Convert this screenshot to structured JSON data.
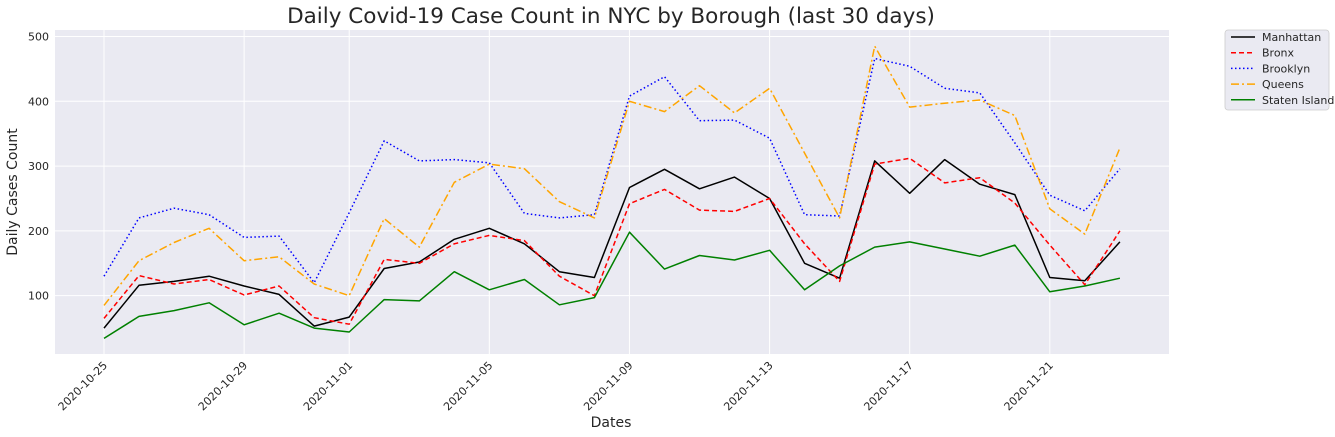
{
  "chart_data": {
    "type": "line",
    "title": "Daily Covid-19 Case Count in NYC by Borough (last 30 days)",
    "xlabel": "Dates",
    "ylabel": "Daily Cases Count",
    "x": [
      "2020-10-25",
      "2020-10-26",
      "2020-10-27",
      "2020-10-28",
      "2020-10-29",
      "2020-10-30",
      "2020-10-31",
      "2020-11-01",
      "2020-11-02",
      "2020-11-03",
      "2020-11-04",
      "2020-11-05",
      "2020-11-06",
      "2020-11-07",
      "2020-11-08",
      "2020-11-09",
      "2020-11-10",
      "2020-11-11",
      "2020-11-12",
      "2020-11-13",
      "2020-11-14",
      "2020-11-15",
      "2020-11-16",
      "2020-11-17",
      "2020-11-18",
      "2020-11-19",
      "2020-11-20",
      "2020-11-21",
      "2020-11-22",
      "2020-11-23"
    ],
    "xticks": [
      "2020-10-25",
      "2020-10-29",
      "2020-11-01",
      "2020-11-05",
      "2020-11-09",
      "2020-11-13",
      "2020-11-17",
      "2020-11-21"
    ],
    "yticks": [
      100,
      200,
      300,
      400,
      500
    ],
    "ylim": [
      10,
      510
    ],
    "grid": true,
    "legend_position": "outside-top-right",
    "series": [
      {
        "name": "Manhattan",
        "color": "#000000",
        "dash": "solid",
        "values": [
          50,
          116,
          122,
          130,
          115,
          102,
          53,
          67,
          142,
          152,
          187,
          204,
          180,
          137,
          128,
          267,
          295,
          265,
          283,
          250,
          150,
          127,
          308,
          258,
          310,
          272,
          256,
          128,
          123,
          183
        ]
      },
      {
        "name": "Bronx",
        "color": "#ff0000",
        "dash": "dashed",
        "values": [
          65,
          131,
          118,
          125,
          101,
          115,
          66,
          56,
          156,
          150,
          180,
          193,
          185,
          130,
          100,
          242,
          264,
          232,
          230,
          250,
          180,
          122,
          303,
          312,
          274,
          282,
          243,
          178,
          117,
          200
        ]
      },
      {
        "name": "Brooklyn",
        "color": "#0000ff",
        "dash": "dotted",
        "values": [
          130,
          220,
          235,
          225,
          190,
          192,
          120,
          228,
          339,
          308,
          310,
          305,
          227,
          220,
          225,
          408,
          438,
          370,
          371,
          343,
          225,
          223,
          466,
          454,
          420,
          413,
          336,
          255,
          231,
          296
        ]
      },
      {
        "name": "Queens",
        "color": "#ffa500",
        "dash": "dashdot",
        "values": [
          85,
          154,
          182,
          204,
          154,
          160,
          118,
          100,
          219,
          175,
          275,
          303,
          296,
          245,
          220,
          400,
          384,
          424,
          382,
          420,
          320,
          220,
          485,
          391,
          397,
          402,
          378,
          234,
          195,
          328
        ]
      },
      {
        "name": "Staten Island",
        "color": "#008000",
        "dash": "solid",
        "values": [
          34,
          68,
          77,
          89,
          55,
          73,
          50,
          44,
          94,
          92,
          137,
          109,
          125,
          86,
          97,
          198,
          141,
          162,
          155,
          170,
          109,
          146,
          175,
          183,
          172,
          161,
          178,
          106,
          115,
          127
        ]
      }
    ]
  }
}
